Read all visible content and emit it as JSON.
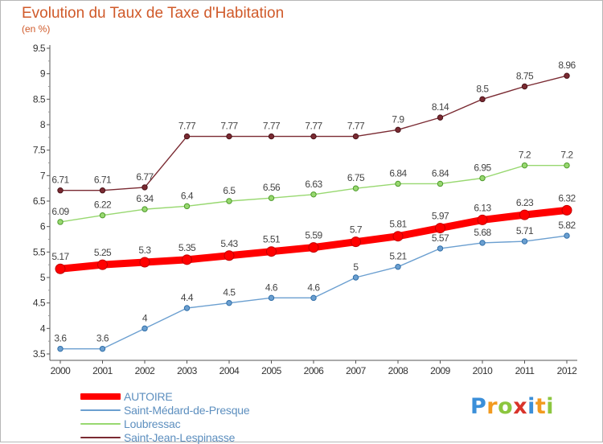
{
  "chart_data": {
    "type": "line",
    "title": "Evolution du Taux de Taxe d'Habitation",
    "subtitle": "(en %)",
    "x": [
      "2000",
      "2001",
      "2002",
      "2003",
      "2004",
      "2005",
      "2006",
      "2007",
      "2008",
      "2009",
      "2010",
      "2011",
      "2012"
    ],
    "ylim": [
      3.5,
      9.5
    ],
    "yticks": [
      "3.5",
      "4",
      "4.5",
      "5",
      "5.5",
      "6",
      "6.5",
      "7",
      "7.5",
      "8",
      "8.5",
      "9",
      "9.5"
    ],
    "grid": false,
    "legend_position": "bottom-left",
    "series": [
      {
        "name": "AUTOIRE",
        "color": "#ff0000",
        "values": [
          5.17,
          5.25,
          5.3,
          5.35,
          5.43,
          5.51,
          5.59,
          5.7,
          5.81,
          5.97,
          6.13,
          6.23,
          6.32
        ],
        "labels": [
          "5.17",
          "5.25",
          "5.3",
          "5.35",
          "5.43",
          "5.51",
          "5.59",
          "5.7",
          "5.81",
          "5.97",
          "6.13",
          "6.23",
          "6.32"
        ]
      },
      {
        "name": "Saint-Médard-de-Presque",
        "color": "#6b9fd0",
        "values": [
          3.6,
          3.6,
          4,
          4.4,
          4.5,
          4.6,
          4.6,
          5,
          5.21,
          5.57,
          5.68,
          5.71,
          5.82
        ],
        "labels": [
          "3.6",
          "3.6",
          "4",
          "4.4",
          "4.5",
          "4.6",
          "4.6",
          "5",
          "5.21",
          "5.57",
          "5.68",
          "5.71",
          "5.82"
        ]
      },
      {
        "name": "Loubressac",
        "color": "#98d870",
        "values": [
          6.09,
          6.22,
          6.34,
          6.4,
          6.5,
          6.56,
          6.63,
          6.75,
          6.84,
          6.84,
          6.95,
          7.2,
          7.2
        ],
        "labels": [
          "6.09",
          "6.22",
          "6.34",
          "6.4",
          "6.5",
          "6.56",
          "6.63",
          "6.75",
          "6.84",
          "6.84",
          "6.95",
          "7.2",
          "7.2"
        ]
      },
      {
        "name": "Saint-Jean-Lespinasse",
        "color": "#7a2a32",
        "values": [
          6.71,
          6.71,
          6.77,
          7.77,
          7.77,
          7.77,
          7.77,
          7.77,
          7.9,
          8.14,
          8.5,
          8.75,
          8.96
        ],
        "labels": [
          "6.71",
          "6.71",
          "6.77",
          "7.77",
          "7.77",
          "7.77",
          "7.77",
          "7.77",
          "7.9",
          "8.14",
          "8.5",
          "8.75",
          "8.96"
        ]
      }
    ]
  },
  "logo": {
    "letters": [
      "P",
      "r",
      "o",
      "x",
      "i",
      "t",
      "i"
    ],
    "colors": [
      "#3b8fd9",
      "#f29a1f",
      "#8cc63f",
      "#d9342b",
      "#3b8fd9",
      "#f29a1f",
      "#8cc63f"
    ]
  },
  "colors": {
    "title": "#d05a2a",
    "axis": "#555555",
    "tick_text": "#333333",
    "point_label": "#444444"
  }
}
